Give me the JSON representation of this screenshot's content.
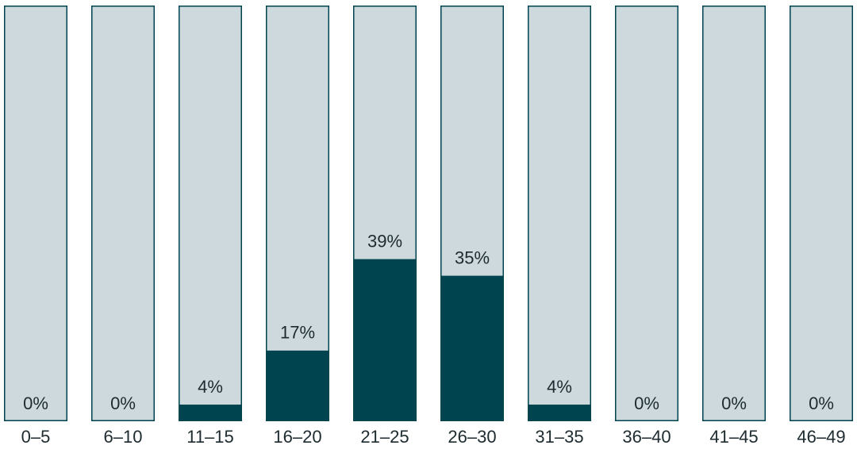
{
  "chart_data": {
    "type": "bar",
    "categories": [
      "0–5",
      "6–10",
      "11–15",
      "16–20",
      "21–25",
      "26–30",
      "31–35",
      "36–40",
      "41–45",
      "46–49"
    ],
    "values": [
      0,
      0,
      4,
      17,
      39,
      35,
      4,
      0,
      0,
      0
    ],
    "value_labels": [
      "0%",
      "0%",
      "4%",
      "17%",
      "39%",
      "35%",
      "4%",
      "0%",
      "0%",
      "0%"
    ],
    "color": "#00444f",
    "track_color": "#cdd9dd",
    "ylim": [
      0,
      100
    ]
  }
}
